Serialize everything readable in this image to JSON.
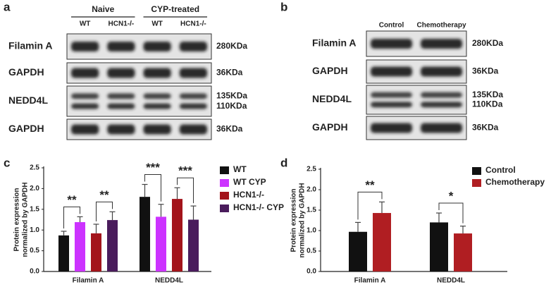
{
  "blot_a": {
    "panel_label": "a",
    "groups": [
      "Naive",
      "CYP-treated"
    ],
    "lanes": [
      "WT",
      "HCN1-/-",
      "WT",
      "HCN1-/-"
    ],
    "rows": [
      {
        "protein": "Filamin A",
        "sizes": [
          "280KDa"
        ]
      },
      {
        "protein": "GAPDH",
        "sizes": [
          "36KDa"
        ]
      },
      {
        "protein": "NEDD4L",
        "sizes": [
          "135KDa",
          "110KDa"
        ]
      },
      {
        "protein": "GAPDH",
        "sizes": [
          "36KDa"
        ]
      }
    ]
  },
  "blot_b": {
    "panel_label": "b",
    "lanes": [
      "Control",
      "Chemotherapy"
    ],
    "rows": [
      {
        "protein": "Filamin A",
        "sizes": [
          "280KDa"
        ]
      },
      {
        "protein": "GAPDH",
        "sizes": [
          "36KDa"
        ]
      },
      {
        "protein": "NEDD4L",
        "sizes": [
          "135KDa",
          "110KDa"
        ]
      },
      {
        "protein": "GAPDH",
        "sizes": [
          "36KDa"
        ]
      }
    ]
  },
  "chart_data": [
    {
      "type": "bar",
      "panel_label": "c",
      "ylabel": [
        "Protein expression",
        "normalized by GAPDH"
      ],
      "categories": [
        "Filamin A",
        "NEDD4L"
      ],
      "series": [
        {
          "name": "WT",
          "color": "#111111",
          "values": [
            0.87,
            1.8
          ],
          "errors": [
            0.1,
            0.3
          ]
        },
        {
          "name": "WT CYP",
          "color": "#cc33ff",
          "values": [
            1.19,
            1.32
          ],
          "errors": [
            0.13,
            0.3
          ]
        },
        {
          "name": "HCN1-/-",
          "color": "#a3141b",
          "values": [
            0.92,
            1.75
          ],
          "errors": [
            0.22,
            0.27
          ]
        },
        {
          "name": "HCN1-/- CYP",
          "color": "#4a1c5c",
          "values": [
            1.24,
            1.25
          ],
          "errors": [
            0.2,
            0.33
          ]
        }
      ],
      "annotations": [
        "**",
        "**",
        "***",
        "***"
      ],
      "ylim": [
        0,
        2.5
      ],
      "yticks": [
        {
          "value": 0,
          "label": "0.0"
        },
        0.5,
        {
          "value": 1,
          "label": "1.0"
        },
        1.5,
        {
          "value": 2,
          "label": "2.0"
        },
        2.5
      ]
    },
    {
      "type": "bar",
      "panel_label": "d",
      "ylabel": [
        "Protein expression",
        "normalized by GAPDH"
      ],
      "categories": [
        "Filamin A",
        "NEDD4L"
      ],
      "series": [
        {
          "name": "Control",
          "color": "#111111",
          "values": [
            0.97,
            1.2
          ],
          "errors": [
            0.23,
            0.23
          ]
        },
        {
          "name": "Chemotherapy",
          "color": "#b01e22",
          "values": [
            1.43,
            0.93
          ],
          "errors": [
            0.27,
            0.18
          ]
        }
      ],
      "annotations": [
        "**",
        "*"
      ],
      "ylim": [
        0,
        2.5
      ],
      "yticks": [
        {
          "value": 0,
          "label": "0.0"
        },
        0.5,
        {
          "value": 1,
          "label": "1.0"
        },
        1.5,
        {
          "value": 2,
          "label": "2.0"
        },
        2.5
      ]
    }
  ]
}
